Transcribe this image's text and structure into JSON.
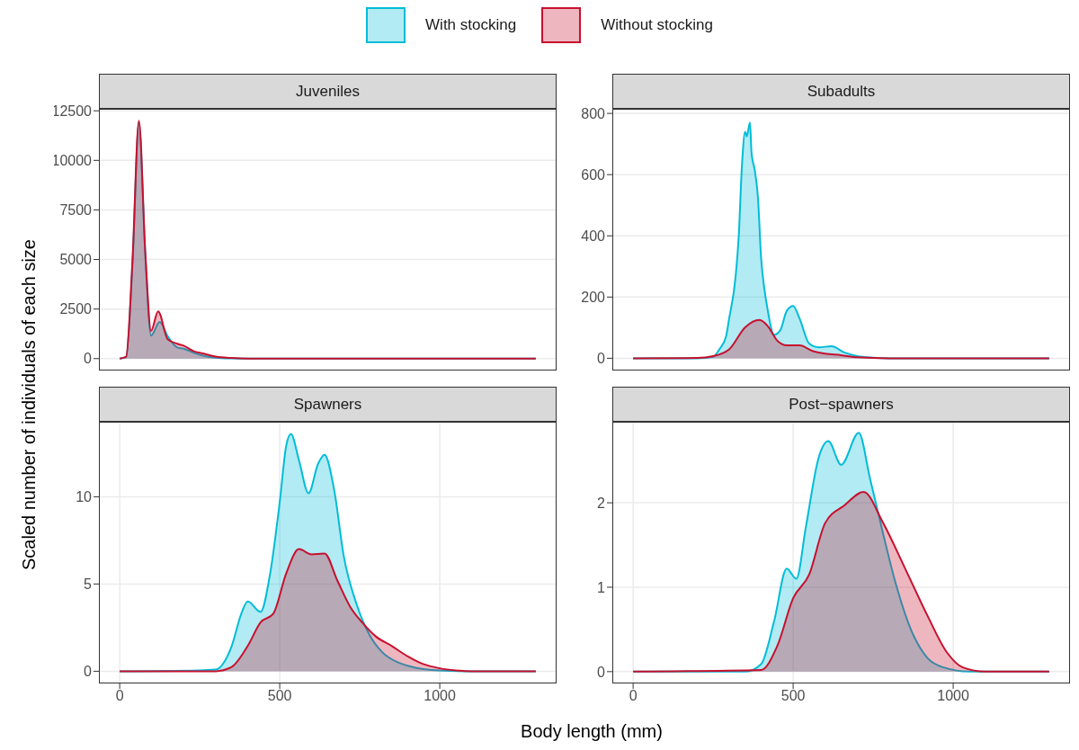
{
  "chart_data": [
    {
      "type": "area",
      "title": "Juveniles",
      "xlabel": "Body length (mm)",
      "ylabel": "Scaled number of individuals of each size",
      "legend": "top",
      "grid": true,
      "tick_labels": "y",
      "xlim": [
        -65,
        1365
      ],
      "ylim": [
        -600,
        12600
      ],
      "xticks": [
        0,
        500,
        1000
      ],
      "yticks": [
        0,
        2500,
        5000,
        7500,
        10000,
        12500
      ],
      "series": [
        {
          "name": "With stocking",
          "color": "#00bcd8",
          "x": [
            0,
            20,
            40,
            60,
            80,
            98,
            125,
            150,
            180,
            200,
            230,
            260,
            300,
            350,
            400,
            1300
          ],
          "values": [
            0,
            80,
            4800,
            11900,
            5200,
            1160,
            1850,
            1130,
            560,
            500,
            300,
            150,
            50,
            10,
            0,
            0
          ]
        },
        {
          "name": "Without stocking",
          "color": "#c8102e",
          "x": [
            0,
            20,
            40,
            60,
            80,
            98,
            120,
            150,
            180,
            200,
            230,
            260,
            300,
            350,
            400,
            1300
          ],
          "values": [
            0,
            100,
            5000,
            12000,
            5350,
            1400,
            2380,
            980,
            750,
            650,
            380,
            260,
            100,
            30,
            0,
            0
          ]
        }
      ]
    },
    {
      "type": "area",
      "title": "Subadults",
      "grid": true,
      "tick_labels": "y",
      "xlim": [
        -65,
        1365
      ],
      "ylim": [
        -40,
        815
      ],
      "xticks": [
        0,
        500,
        1000
      ],
      "yticks": [
        0,
        200,
        400,
        600,
        800
      ],
      "series": [
        {
          "color": "#00bcd8",
          "x": [
            0,
            200,
            250,
            270,
            290,
            300,
            320,
            330,
            340,
            350,
            355,
            365,
            370,
            380,
            390,
            400,
            410,
            420,
            440,
            460,
            480,
            500,
            520,
            550,
            580,
            620,
            660,
            700,
            750,
            800,
            1300
          ],
          "values": [
            0,
            0,
            5,
            30,
            70,
            130,
            265,
            400,
            630,
            740,
            725,
            770,
            670,
            615,
            525,
            325,
            227,
            160,
            77,
            92,
            155,
            171,
            130,
            48,
            36,
            39,
            19,
            7,
            2,
            0,
            0
          ]
        },
        {
          "color": "#c8102e",
          "x": [
            0,
            200,
            250,
            300,
            350,
            395,
            420,
            450,
            480,
            520,
            560,
            600,
            650,
            700,
            800,
            1300
          ],
          "values": [
            0,
            1,
            7,
            29,
            101,
            125,
            106,
            58,
            42,
            42,
            24,
            15,
            10,
            3,
            0,
            0
          ]
        }
      ]
    },
    {
      "type": "area",
      "title": "Spawners",
      "grid": true,
      "xlim": [
        -65,
        1365
      ],
      "ylim": [
        -0.7,
        14.3
      ],
      "xticks": [
        0,
        500,
        1000
      ],
      "yticks": [
        0,
        5,
        10
      ],
      "series": [
        {
          "color": "#00bcd8",
          "x": [
            0,
            250,
            300,
            350,
            380,
            400,
            440,
            470,
            500,
            520,
            535,
            560,
            590,
            620,
            640,
            670,
            700,
            740,
            780,
            820,
            870,
            920,
            1000,
            1100,
            1300
          ],
          "values": [
            0,
            0.05,
            0.1,
            1.45,
            3.3,
            4.0,
            3.4,
            5.6,
            9.7,
            12.9,
            13.6,
            12.1,
            10.2,
            11.9,
            12.4,
            10.4,
            6.6,
            3.85,
            2.1,
            1.1,
            0.5,
            0.22,
            0.05,
            0,
            0
          ]
        },
        {
          "color": "#c8102e",
          "x": [
            0,
            300,
            350,
            400,
            440,
            480,
            520,
            560,
            600,
            640,
            680,
            720,
            760,
            800,
            850,
            900,
            950,
            1000,
            1050,
            1100,
            1300
          ],
          "values": [
            0,
            0,
            0.25,
            1.45,
            2.8,
            3.3,
            5.6,
            7.0,
            6.7,
            6.75,
            5.2,
            3.7,
            2.75,
            2.0,
            1.45,
            0.85,
            0.4,
            0.17,
            0.05,
            0,
            0
          ]
        }
      ]
    },
    {
      "type": "area",
      "title": "Post−spawners",
      "grid": true,
      "xlim": [
        -65,
        1365
      ],
      "ylim": [
        -0.14,
        2.96
      ],
      "xticks": [
        0,
        500,
        1000
      ],
      "yticks": [
        0,
        1,
        2
      ],
      "series": [
        {
          "color": "#00bcd8",
          "x": [
            0,
            350,
            400,
            440,
            480,
            510,
            540,
            580,
            610,
            650,
            705,
            740,
            780,
            820,
            870,
            920,
            970,
            1050,
            1300
          ],
          "values": [
            0,
            0,
            0.09,
            0.59,
            1.22,
            1.1,
            1.72,
            2.54,
            2.73,
            2.45,
            2.83,
            2.29,
            1.65,
            1.05,
            0.48,
            0.16,
            0.05,
            0,
            0
          ]
        },
        {
          "color": "#c8102e",
          "x": [
            0,
            400,
            450,
            500,
            550,
            600,
            660,
            720,
            780,
            850,
            920,
            980,
            1030,
            1100,
            1300
          ],
          "values": [
            0,
            0.02,
            0.3,
            0.87,
            1.15,
            1.76,
            1.97,
            2.13,
            1.77,
            1.22,
            0.66,
            0.23,
            0.05,
            0,
            0
          ]
        }
      ]
    }
  ]
}
